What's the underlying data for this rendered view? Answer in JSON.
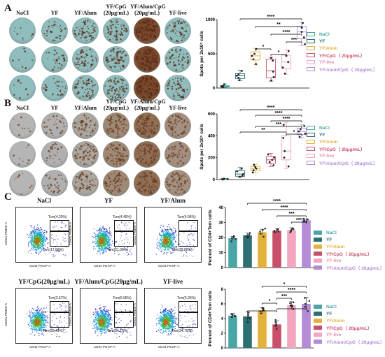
{
  "panels": {
    "A": {
      "label": "A",
      "columns": [
        "NaCl",
        "YF",
        "YF/Alum",
        "YF/CpG\n(20μg/mL)",
        "YF/Alum/CpG\n(20μg/mL)",
        "YF-live"
      ],
      "well_bg": "#8fbcbc"
    },
    "B": {
      "label": "B",
      "columns": [
        "NaCl",
        "YF",
        "YF/Alum",
        "YF/CpG\n(20μg/mL)",
        "YF/Alum/CpG\n(20μg/mL)",
        "YF-live"
      ],
      "well_bg": "#a8a8a8"
    },
    "C": {
      "label": "C",
      "flow": [
        {
          "title": "NaCl",
          "tcm": "Tcm(4.20%)",
          "tem": "Tem(17.63%)"
        },
        {
          "title": "YF",
          "tcm": "Tcm(4.45%)",
          "tem": "Tem(21.06%)"
        },
        {
          "title": "YF/Alum",
          "tcm": "Tcm(4.96%)",
          "tem": "Tem(23.83%)"
        },
        {
          "title": "YF/CpG(20μg/mL)",
          "tcm": "Tcm(2.57%)",
          "tem": "Tem(25.49%)"
        },
        {
          "title": "YF/Alum/CpG(20μg/mL)",
          "tcm": "Tcm(6.65%)",
          "tem": "Tem(34.17%)"
        },
        {
          "title": "YF-live",
          "tcm": "Tcm(5.25%)",
          "tem": "Tem(24.79%)"
        }
      ],
      "flow_x_axis": "CD44 PerCP-A",
      "flow_y_axis": "CD62L PB450-A"
    }
  },
  "colors": {
    "NaCl": "#4aa6a6",
    "YF": "#2e6f74",
    "YF/Alum": "#e3b23c",
    "YF/CpG": "#c9506b",
    "YF-live": "#f2a6bf",
    "YF/Alum/CpG": "#b48bd6"
  },
  "chart_data": [
    {
      "type": "box",
      "ylabel": "Spots per 2x10⁵ cells",
      "ylim": [
        0,
        1000
      ],
      "yticks": [
        "0",
        "500",
        "1000"
      ],
      "categories": [
        "NaCl",
        "YF",
        "YF/Alum",
        "YF/CpG",
        "YF-live",
        "YF/Alum/CpG"
      ],
      "series": [
        {
          "name": "NaCl",
          "min": 10,
          "q1": 15,
          "median": 25,
          "q3": 35,
          "max": 60,
          "points": [
            10,
            20,
            25,
            30,
            55
          ]
        },
        {
          "name": "YF",
          "min": 110,
          "q1": 140,
          "median": 180,
          "q3": 210,
          "max": 260,
          "points": [
            115,
            150,
            180,
            200,
            250
          ]
        },
        {
          "name": "YF/Alum",
          "min": 340,
          "q1": 410,
          "median": 470,
          "q3": 530,
          "max": 580,
          "points": [
            350,
            420,
            470,
            500,
            570
          ]
        },
        {
          "name": "YF/CpG",
          "min": 100,
          "q1": 150,
          "median": 250,
          "q3": 420,
          "max": 450,
          "points": [
            110,
            160,
            240,
            400,
            440
          ]
        },
        {
          "name": "YF-live",
          "min": 200,
          "q1": 280,
          "median": 380,
          "q3": 480,
          "max": 560,
          "points": [
            210,
            300,
            380,
            470,
            540
          ]
        },
        {
          "name": "YF/Alum/CpG",
          "min": 620,
          "q1": 720,
          "median": 820,
          "q3": 900,
          "max": 960,
          "points": [
            640,
            740,
            820,
            880,
            950
          ]
        }
      ],
      "significance": [
        "*",
        "*",
        "****",
        "**",
        "****",
        "***"
      ],
      "legend": [
        "NaCl",
        "YF",
        "YF/Alum",
        "YF/CpG（ 20μg/mL）",
        "YF-live",
        "YF/Alum/CpG（ 20μg/mL）"
      ]
    },
    {
      "type": "box",
      "ylabel": "Spots per 2x10⁵ cells",
      "ylim": [
        0,
        600
      ],
      "yticks": [
        "0",
        "200",
        "400",
        "600"
      ],
      "categories": [
        "NaCl",
        "YF",
        "YF/Alum",
        "YF/CpG",
        "YF-live",
        "YF/Alum/CpG"
      ],
      "series": [
        {
          "name": "NaCl",
          "min": 0,
          "q1": 2,
          "median": 4,
          "q3": 6,
          "max": 10,
          "points": [
            0,
            3,
            4,
            6,
            8
          ]
        },
        {
          "name": "YF",
          "min": 20,
          "q1": 30,
          "median": 50,
          "q3": 80,
          "max": 110,
          "points": [
            25,
            35,
            50,
            75,
            100
          ]
        },
        {
          "name": "YF/Alum",
          "min": 60,
          "q1": 80,
          "median": 100,
          "q3": 120,
          "max": 140,
          "points": [
            65,
            85,
            100,
            115,
            135
          ]
        },
        {
          "name": "YF/CpG",
          "min": 120,
          "q1": 150,
          "median": 180,
          "q3": 210,
          "max": 240,
          "points": [
            130,
            160,
            180,
            200,
            230
          ]
        },
        {
          "name": "YF-live",
          "min": 100,
          "q1": 180,
          "median": 260,
          "q3": 400,
          "max": 520,
          "points": [
            120,
            200,
            260,
            380,
            500
          ]
        },
        {
          "name": "YF/Alum/CpG",
          "min": 380,
          "q1": 410,
          "median": 440,
          "q3": 470,
          "max": 500,
          "points": [
            390,
            420,
            440,
            460,
            490
          ]
        }
      ],
      "significance": [
        "**",
        "***",
        "*",
        "****",
        "****",
        "****"
      ],
      "legend": [
        "NaCl",
        "YF",
        "YF/Alum",
        "YF/CpG（ 20μg/mL）",
        "YF-live",
        "YF/Alum/CpG（ 20μg/mL）"
      ]
    },
    {
      "type": "bar",
      "ylabel": "Percent of CD4+Tem cells",
      "ylim": [
        0,
        40
      ],
      "yticks": [
        "0",
        "10",
        "20",
        "30",
        "40"
      ],
      "categories": [
        "NaCl",
        "YF",
        "YF/Alum",
        "YF/CpG",
        "YF-live",
        "YF/Alum/CpG"
      ],
      "values": [
        19.5,
        21.5,
        23.5,
        24.5,
        25,
        31.5
      ],
      "errors": [
        1.2,
        1.5,
        2.0,
        1.5,
        1.5,
        1.0
      ],
      "points": [
        [
          17.5,
          19,
          20,
          21,
          19.5
        ],
        [
          20,
          21,
          22,
          23,
          20.5
        ],
        [
          20.5,
          22.5,
          24,
          25,
          26
        ],
        [
          23.5,
          24,
          25,
          24.5,
          25.5
        ],
        [
          23.5,
          24.5,
          25.5,
          26,
          25
        ],
        [
          30.5,
          31,
          32,
          31.5,
          32.5
        ]
      ],
      "significance": [
        "****",
        "****",
        "***",
        "***"
      ],
      "legend": [
        "NaCl",
        "YF",
        "YF/Alum",
        "YF/CpG（ 20μg/mL）",
        "YF-live",
        "YF/Alum/CpG（ 20μg/mL）"
      ]
    },
    {
      "type": "bar",
      "ylabel": "Percent of CD4+Tcm cells",
      "ylim": [
        0,
        8
      ],
      "yticks": [
        "0",
        "2",
        "4",
        "6",
        "8"
      ],
      "categories": [
        "NaCl",
        "YF",
        "YF/Alum",
        "YF/CpG",
        "YF-live",
        "YF/Alum/CpG"
      ],
      "values": [
        4.4,
        4.3,
        5.1,
        3.2,
        5.8,
        6.0
      ],
      "errors": [
        0.3,
        0.6,
        0.4,
        0.5,
        0.5,
        0.9
      ],
      "points": [
        [
          4.2,
          4.4,
          4.5,
          4.3,
          4.6
        ],
        [
          3.5,
          4.0,
          4.5,
          4.8,
          4.2
        ],
        [
          4.7,
          5.0,
          5.2,
          5.4,
          5.1
        ],
        [
          2.6,
          3.0,
          3.2,
          3.5,
          3.8
        ],
        [
          5.3,
          5.6,
          5.8,
          6.1,
          6.2
        ],
        [
          5.0,
          5.6,
          6.0,
          6.4,
          6.8
        ]
      ],
      "significance": [
        "*",
        "****",
        "*",
        "***",
        "**",
        "*"
      ],
      "legend": [
        "NaCl",
        "YF",
        "YF/Alum",
        "YF/CpG（ 20μg/mL）",
        "YF-live",
        "YF/Alum/CpG（ 20μg/mL）"
      ]
    }
  ]
}
